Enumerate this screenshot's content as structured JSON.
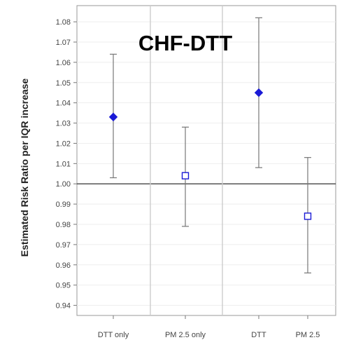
{
  "chart_data": {
    "type": "scatter",
    "title": "CHF-DTT",
    "xlabel": "",
    "ylabel": "Estimated Risk Ratio per IQR increase",
    "ylim": [
      0.935,
      1.088
    ],
    "yticks": [
      0.94,
      0.95,
      0.96,
      0.97,
      0.98,
      0.99,
      1.0,
      1.01,
      1.02,
      1.03,
      1.04,
      1.05,
      1.06,
      1.07,
      1.08
    ],
    "ytick_labels": [
      "0.94",
      "0.95",
      "0.96",
      "0.97",
      "0.98",
      "0.99",
      "1.00",
      "1.01",
      "1.02",
      "1.03",
      "1.04",
      "1.05",
      "1.06",
      "1.07",
      "1.08"
    ],
    "reference_line": 1.0,
    "categories": [
      "DTT only",
      "PM 2.5 only",
      "DTT",
      "PM 2.5"
    ],
    "points": [
      {
        "category": "DTT only",
        "estimate": 1.033,
        "lower": 1.003,
        "upper": 1.064,
        "marker": "filled-diamond"
      },
      {
        "category": "PM 2.5 only",
        "estimate": 1.004,
        "lower": 0.979,
        "upper": 1.028,
        "marker": "open-square"
      },
      {
        "category": "DTT",
        "estimate": 1.045,
        "lower": 1.008,
        "upper": 1.082,
        "marker": "filled-diamond"
      },
      {
        "category": "PM 2.5",
        "estimate": 0.984,
        "lower": 0.956,
        "upper": 1.013,
        "marker": "open-square"
      }
    ],
    "colors": {
      "marker": "#1a1ad6",
      "errorbar": "#777777",
      "grid": "#eeeeee",
      "divider": "#cccccc",
      "frame": "#999999",
      "refline": "#333333"
    }
  }
}
